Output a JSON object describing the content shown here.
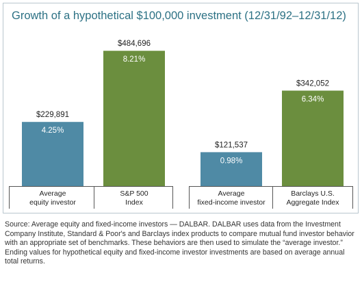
{
  "chart_data": {
    "type": "bar",
    "title": "Growth of a hypothetical $100,000 investment (12/31/92–12/31/12)",
    "xlabel": "",
    "ylabel": "",
    "ylim": [
      0,
      500000
    ],
    "grid": false,
    "groups": [
      {
        "bars": [
          {
            "label_lines": [
              "Average",
              "equity investor"
            ],
            "value": 229891,
            "value_label": "$229,891",
            "return_label": "4.25%",
            "color": "#4f8aa5"
          },
          {
            "label_lines": [
              "S&P 500",
              "Index"
            ],
            "value": 484696,
            "value_label": "$484,696",
            "return_label": "8.21%",
            "color": "#6b8e3e"
          }
        ]
      },
      {
        "bars": [
          {
            "label_lines": [
              "Average",
              "fixed-income investor"
            ],
            "value": 121537,
            "value_label": "$121,537",
            "return_label": "0.98%",
            "color": "#4f8aa5"
          },
          {
            "label_lines": [
              "Barclays U.S.",
              "Aggregate Index"
            ],
            "value": 342052,
            "value_label": "$342,052",
            "return_label": "6.34%",
            "color": "#6b8e3e"
          }
        ]
      }
    ]
  },
  "source_note": "Source: Average equity and fixed-income investors — DALBAR. DALBAR uses data from the Investment Company Institute, Standard & Poor's and Barclays index products to compare mutual fund investor behavior with an appropriate set of benchmarks. These behaviors are then used to simulate the “average investor.” Ending values for hypothetical equity and fixed-income investor investments are based on average annual total returns."
}
